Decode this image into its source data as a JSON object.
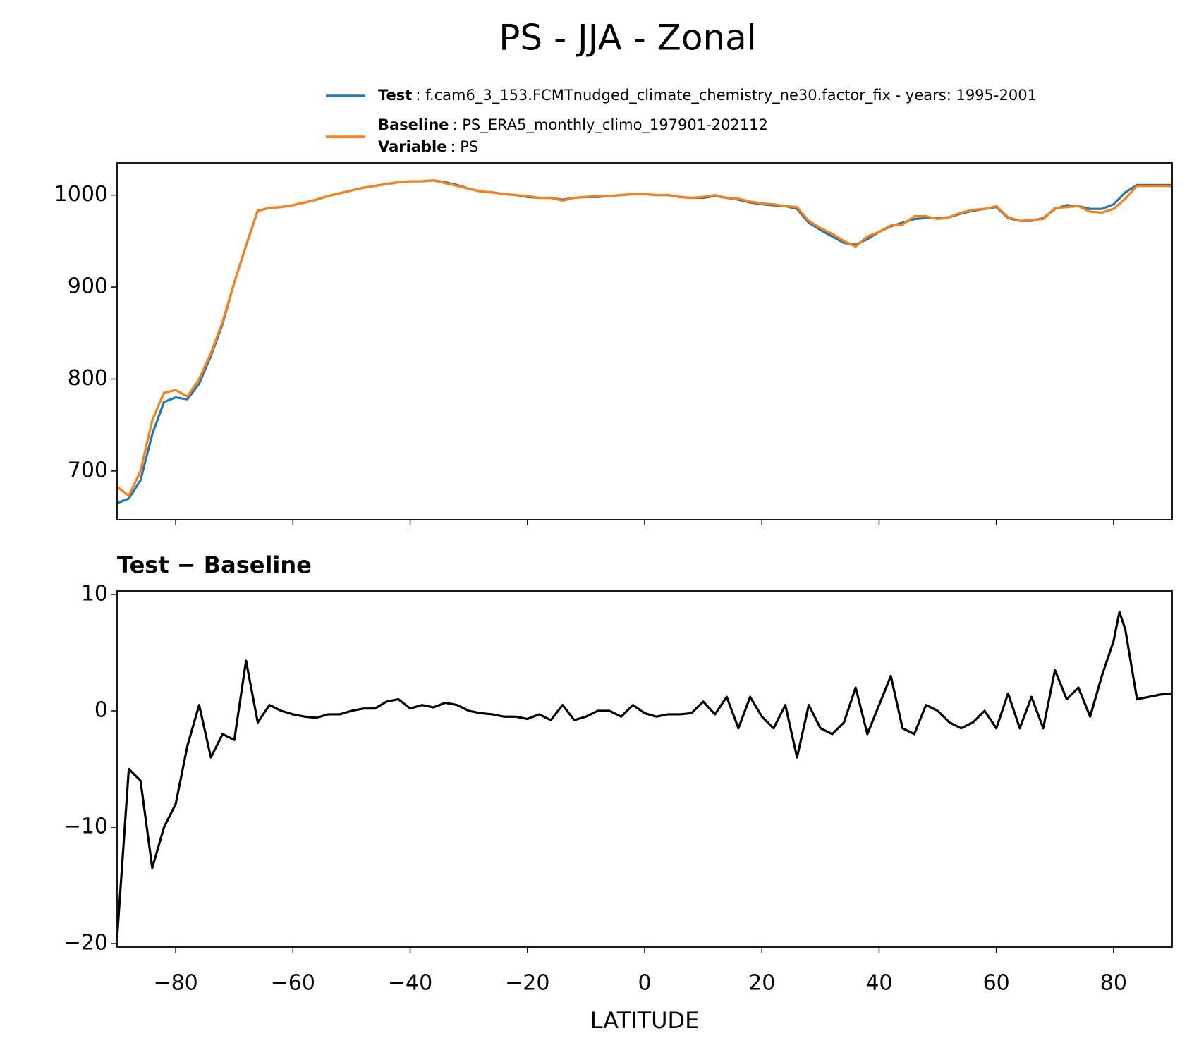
{
  "title": "PS - JJA - Zonal",
  "chart_data": [
    {
      "type": "line",
      "x": [
        -90,
        -88,
        -86,
        -84,
        -82,
        -80,
        -78,
        -76,
        -74,
        -72,
        -70,
        -68,
        -66,
        -64,
        -62,
        -60,
        -58,
        -56,
        -54,
        -52,
        -50,
        -48,
        -46,
        -44,
        -42,
        -40,
        -38,
        -36,
        -34,
        -32,
        -30,
        -28,
        -26,
        -24,
        -22,
        -20,
        -18,
        -16,
        -14,
        -12,
        -10,
        -8,
        -6,
        -4,
        -2,
        0,
        2,
        4,
        6,
        8,
        10,
        12,
        14,
        16,
        18,
        20,
        22,
        24,
        26,
        28,
        30,
        32,
        34,
        36,
        38,
        40,
        42,
        44,
        46,
        48,
        50,
        52,
        54,
        56,
        58,
        60,
        62,
        64,
        66,
        68,
        70,
        72,
        74,
        76,
        78,
        80,
        82,
        84,
        86,
        88,
        90
      ],
      "series": [
        {
          "name": "Test",
          "description": ": f.cam6_3_153.FCMTnudged_climate_chemistry_ne30.factor_fix - years: 1995-2001",
          "color": "#1f77b4",
          "values": [
            665,
            670,
            690,
            740,
            775,
            780,
            778,
            795,
            825,
            860,
            905,
            945,
            983,
            986,
            987,
            989,
            992,
            995,
            999,
            1002,
            1005,
            1008,
            1010,
            1012,
            1014,
            1015,
            1015,
            1016,
            1014,
            1011,
            1007,
            1004,
            1003,
            1001,
            1000,
            998,
            997,
            997,
            995,
            997,
            998,
            998,
            999,
            1000,
            1001,
            1001,
            1000,
            1000,
            998,
            997,
            997,
            999,
            997,
            995,
            992,
            990,
            989,
            988,
            985,
            970,
            962,
            955,
            948,
            946,
            952,
            960,
            966,
            970,
            974,
            975,
            975,
            976,
            980,
            983,
            985,
            987,
            975,
            972,
            972,
            975,
            985,
            989,
            988,
            985,
            985,
            990,
            1003,
            1011,
            1011,
            1011,
            1011
          ]
        },
        {
          "name": "Baseline",
          "description": ": PS_ERA5_monthly_climo_197901-202112",
          "color": "#ff7f0e",
          "values": [
            683,
            673,
            700,
            755,
            785,
            788,
            781,
            800,
            828,
            862,
            905,
            945,
            983,
            986,
            987,
            989,
            992,
            995,
            999,
            1002,
            1005,
            1008,
            1010,
            1012,
            1014,
            1015,
            1015,
            1016,
            1013,
            1010,
            1007,
            1004,
            1003,
            1001,
            1000,
            999,
            997,
            997,
            994,
            997,
            998,
            999,
            999,
            1000,
            1001,
            1001,
            1000,
            1000,
            998,
            997,
            998,
            1000,
            997,
            996,
            993,
            991,
            990,
            988,
            987,
            972,
            964,
            958,
            950,
            944,
            955,
            960,
            967,
            968,
            977,
            977,
            974,
            976,
            981,
            984,
            985,
            988,
            976,
            972,
            973,
            974,
            986,
            987,
            988,
            982,
            981,
            985,
            996,
            1010,
            1010,
            1010,
            1010
          ]
        }
      ],
      "legend_note": {
        "name": "Variable",
        "text": ": PS"
      },
      "xlim": [
        -90,
        90
      ],
      "xticks": [
        -80,
        -60,
        -40,
        -20,
        0,
        20,
        40,
        60,
        80
      ],
      "xtick_labels": false,
      "ylim": [
        647,
        1035
      ],
      "yticks": [
        700,
        800,
        900,
        1000
      ]
    },
    {
      "type": "line",
      "title": "Test − Baseline",
      "xlabel": "LATITUDE",
      "x": [
        -90,
        -88,
        -86,
        -84,
        -82,
        -80,
        -78,
        -76,
        -74,
        -72,
        -70,
        -68,
        -66,
        -64,
        -62,
        -60,
        -58,
        -56,
        -54,
        -52,
        -50,
        -48,
        -46,
        -44,
        -42,
        -40,
        -38,
        -36,
        -34,
        -32,
        -30,
        -28,
        -26,
        -24,
        -22,
        -20,
        -18,
        -16,
        -14,
        -12,
        -10,
        -8,
        -6,
        -4,
        -2,
        0,
        2,
        4,
        6,
        8,
        10,
        12,
        14,
        16,
        18,
        20,
        22,
        24,
        26,
        28,
        30,
        32,
        34,
        36,
        38,
        40,
        42,
        44,
        46,
        48,
        50,
        52,
        54,
        56,
        58,
        60,
        62,
        64,
        66,
        68,
        70,
        72,
        74,
        76,
        78,
        80,
        81,
        82,
        84,
        86,
        88,
        90
      ],
      "series": [
        {
          "color": "#000000",
          "values": [
            -19.5,
            -5,
            -6,
            -13.5,
            -10,
            -8,
            -3,
            0.5,
            -4,
            -2,
            -2.5,
            4.3,
            -1,
            0.5,
            0,
            -0.3,
            -0.5,
            -0.6,
            -0.3,
            -0.3,
            0,
            0.2,
            0.2,
            0.8,
            1,
            0.2,
            0.5,
            0.3,
            0.7,
            0.5,
            0,
            -0.2,
            -0.3,
            -0.5,
            -0.5,
            -0.7,
            -0.3,
            -0.8,
            0.5,
            -0.8,
            -0.5,
            0,
            0,
            -0.5,
            0.5,
            -0.2,
            -0.5,
            -0.3,
            -0.3,
            -0.2,
            0.8,
            -0.3,
            1.2,
            -1.5,
            1.2,
            -0.5,
            -1.5,
            0.5,
            -4,
            0.5,
            -1.5,
            -2,
            -1,
            2,
            -2,
            0.5,
            3,
            -1.5,
            -2,
            0.5,
            0,
            -1,
            -1.5,
            -1,
            0,
            -1.5,
            1.5,
            -1.5,
            1.2,
            -1.5,
            3.5,
            1,
            2,
            -0.5,
            3,
            6,
            8.5,
            7,
            1,
            1.2,
            1.4,
            1.5
          ]
        }
      ],
      "xlim": [
        -90,
        90
      ],
      "xticks": [
        {
          "value": -80,
          "label": "−80"
        },
        {
          "value": -60,
          "label": "−60"
        },
        {
          "value": -40,
          "label": "−40"
        },
        {
          "value": -20,
          "label": "−20"
        },
        0,
        20,
        40,
        60,
        80
      ],
      "xtick_labels": true,
      "ylim": [
        -20.3,
        10.3
      ],
      "yticks": [
        {
          "value": -20,
          "label": "−20"
        },
        {
          "value": -10,
          "label": "−10"
        },
        0,
        10
      ]
    }
  ]
}
